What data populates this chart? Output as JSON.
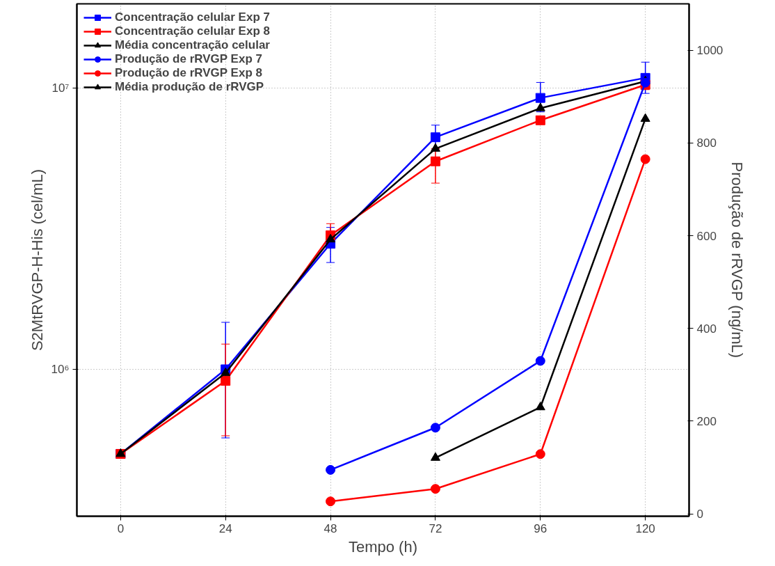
{
  "chart_data": {
    "type": "line",
    "xlabel": "Tempo (h)",
    "ylabel": "S2MtRVGP-H-His (cel/mL)",
    "y2label": "Produção de rRVGP (ng/mL)",
    "x": [
      0,
      24,
      48,
      72,
      96,
      120
    ],
    "series": [
      {
        "name": "Concentração celular Exp 7",
        "color": "#0000ff",
        "marker": "square",
        "values": [
          500000,
          1000000,
          2800000,
          6700000,
          9250000,
          10900000
        ],
        "errors": [
          null,
          [
            570000,
            1470000
          ],
          [
            2400000,
            3200000
          ],
          [
            6100000,
            7400000
          ],
          [
            8250000,
            10500000
          ],
          [
            9600000,
            12400000
          ]
        ]
      },
      {
        "name": "Concentração celular Exp 8",
        "color": "#ff0000",
        "marker": "square",
        "values": [
          500000,
          910000,
          3000000,
          5500000,
          7700000,
          10300000
        ],
        "errors": [
          null,
          [
            580000,
            1230000
          ],
          [
            2900000,
            3300000
          ],
          [
            4600000,
            6100000
          ],
          null,
          [
            9900000,
            10700000
          ]
        ]
      },
      {
        "name": "Média concentração celular",
        "color": "#000000",
        "marker": "triangle",
        "values": [
          500000,
          970000,
          2900000,
          6100000,
          8500000,
          10600000
        ]
      },
      {
        "name": "Produção de rRVGP Exp 7",
        "color": "#0000ff",
        "marker": "circle",
        "axis": "y2",
        "values": [
          null,
          null,
          95,
          186,
          330,
          930
        ]
      },
      {
        "name": "Produção de rRVGP Exp 8",
        "color": "#ff0000",
        "marker": "circle",
        "axis": "y2",
        "values": [
          null,
          null,
          27,
          54,
          129,
          765
        ]
      },
      {
        "name": "Média produção de rRVGP",
        "color": "#000000",
        "marker": "triangle",
        "axis": "y2",
        "values": [
          null,
          null,
          null,
          121,
          230,
          852
        ]
      }
    ],
    "log": "y",
    "xlim": [
      -10,
      130
    ],
    "xticks": [
      0,
      24,
      48,
      72,
      96,
      120
    ],
    "ylim": [
      300000,
      20000000
    ],
    "yticks": [
      {
        "value": 1000000,
        "label": "10⁶"
      },
      {
        "value": 10000000,
        "label": "10⁷"
      }
    ],
    "y2lim": [
      -5,
      1100
    ],
    "y2ticks": [
      0,
      200,
      400,
      600,
      800,
      1000
    ],
    "grid": true,
    "legend": "top left"
  }
}
